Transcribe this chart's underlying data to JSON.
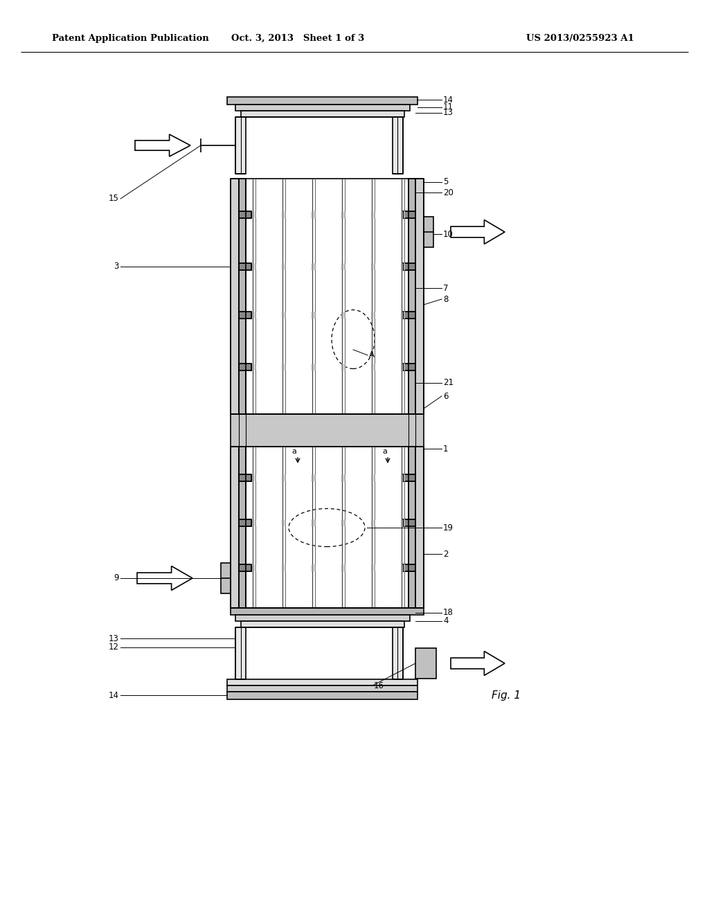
{
  "bg_color": "#ffffff",
  "line_color": "#000000",
  "line_width": 1.2,
  "header_left": "Patent Application Publication",
  "header_mid": "Oct. 3, 2013   Sheet 1 of 3",
  "header_right": "US 2013/0255923 A1",
  "fig_label": "Fig. 1"
}
